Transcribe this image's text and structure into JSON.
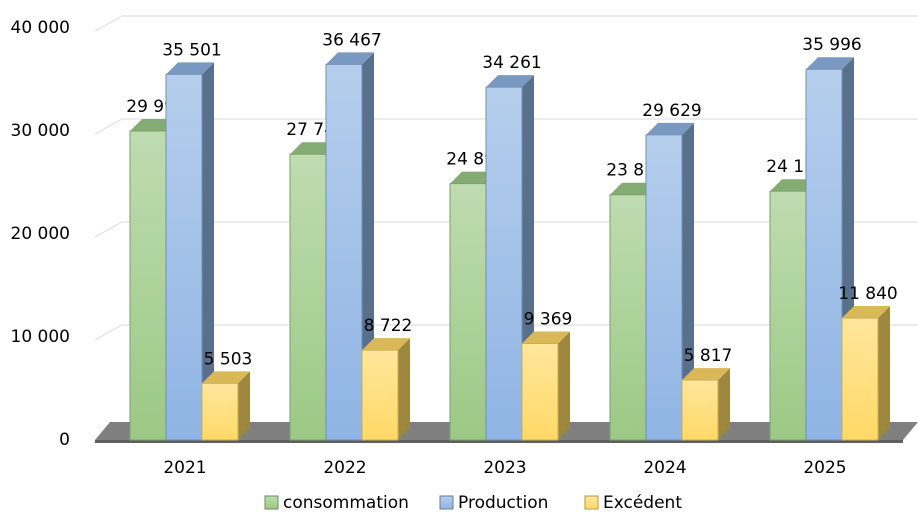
{
  "chart_data": {
    "type": "bar3d",
    "categories": [
      "2021",
      "2022",
      "2023",
      "2024",
      "2025"
    ],
    "series": [
      {
        "name": "consommation",
        "color": "#9bc985",
        "values": [
          29998,
          27745,
          24892,
          23812,
          24156
        ],
        "value_labels": [
          "29 998",
          "27 745",
          "24 892",
          "23 812",
          "24 156"
        ]
      },
      {
        "name": "Production",
        "color": "#8fb4e3",
        "values": [
          35501,
          36467,
          34261,
          29629,
          35996
        ],
        "value_labels": [
          "35 501",
          "36 467",
          "34 261",
          "29 629",
          "35 996"
        ]
      },
      {
        "name": "Excédent",
        "color": "#ffd966",
        "values": [
          5503,
          8722,
          9369,
          5817,
          11840
        ],
        "value_labels": [
          "5 503",
          "8 722",
          "9 369",
          "5 817",
          "11 840"
        ]
      }
    ],
    "ylim": [
      0,
      40000
    ],
    "yticks": [
      0,
      {
        "value": 10000,
        "label": "10 000"
      },
      {
        "value": 20000,
        "label": "20 000"
      },
      {
        "value": 30000,
        "label": "30 000"
      },
      {
        "value": 40000,
        "label": "40 000"
      }
    ],
    "grid": true,
    "legend": "bottom"
  }
}
